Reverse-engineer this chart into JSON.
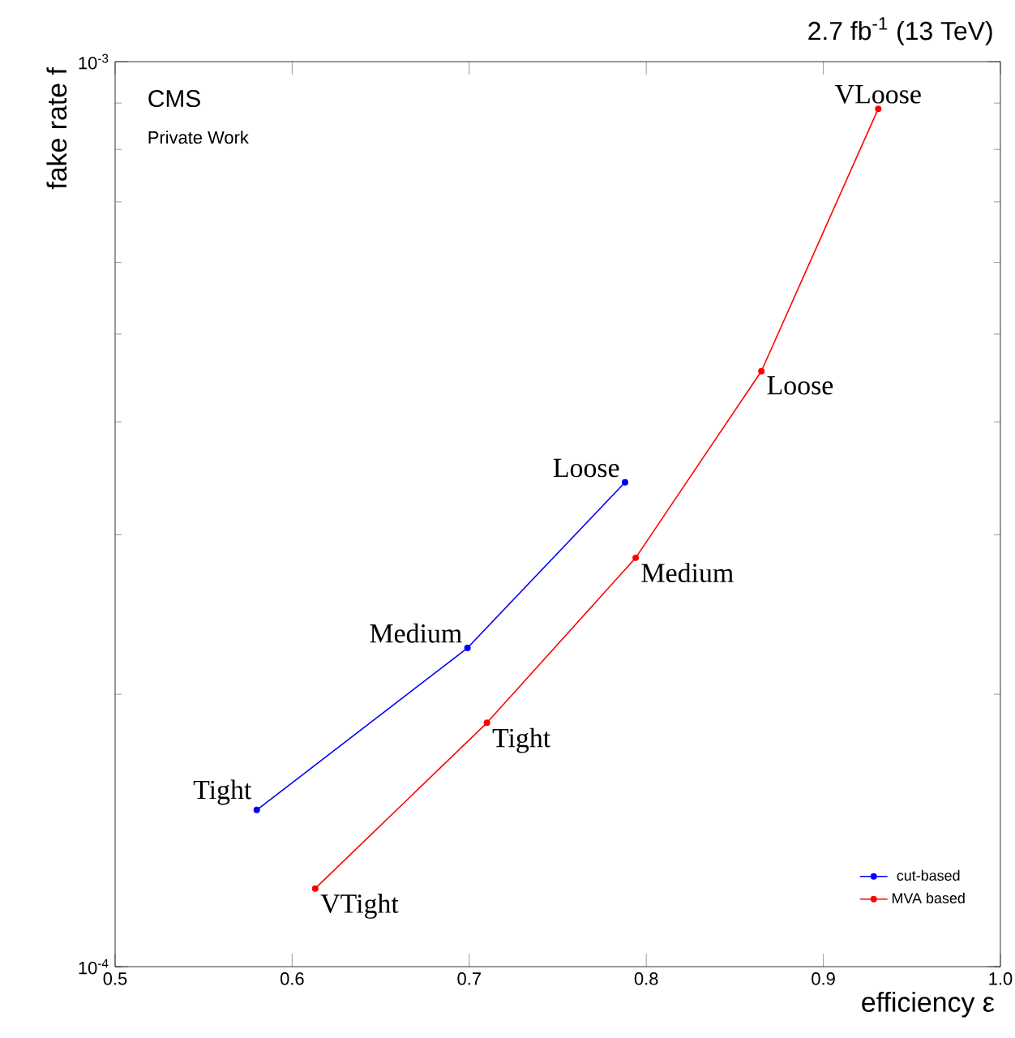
{
  "chart_data": {
    "type": "line",
    "title": "2.7 fb$^{-1}$ (13 TeV)",
    "xlabel": "efficiency ε",
    "ylabel": "fake rate f",
    "series": [
      {
        "name": "cut-based",
        "color": "#0000ff",
        "x": [
          0.58,
          0.699,
          0.788
        ],
        "values": [
          0.000149,
          0.000225,
          0.000343
        ]
      },
      {
        "name": "MVA based",
        "color": "#ff0000",
        "x": [
          0.613,
          0.71,
          0.794,
          0.865,
          0.931
        ],
        "values": [
          0.000122,
          0.000186,
          0.000283,
          0.000455,
          0.000887
        ]
      }
    ],
    "xlim": [
      0.5,
      1.0
    ],
    "ylim": [
      0.0001,
      0.001
    ],
    "xticks": [
      0.5,
      0.6,
      0.7,
      0.8,
      0.9,
      {
        "value": 1.0,
        "label": "1.0"
      }
    ],
    "yticks": [
      {
        "value": 0.0001,
        "label": "10$^{-4}$"
      },
      {
        "value": 0.001,
        "label": "10$^{-3}$"
      }
    ],
    "log": "y",
    "grid": false,
    "legend": "bottom right",
    "marker": "circle",
    "line_style": "solid",
    "annotations": [
      "CMS",
      "Private Work",
      {
        "text": "Tight",
        "x": 0.58,
        "y": 0.000149
      },
      {
        "text": "Medium",
        "x": 0.699,
        "y": 0.000225
      },
      {
        "text": "Loose",
        "x": 0.788,
        "y": 0.000343
      },
      {
        "text": "VTight",
        "x": 0.613,
        "y": 0.000122
      },
      {
        "text": "Tight",
        "x": 0.71,
        "y": 0.000186
      },
      {
        "text": "Medium",
        "x": 0.794,
        "y": 0.000283
      },
      {
        "text": "Loose",
        "x": 0.865,
        "y": 0.000455
      },
      {
        "text": "VLoose",
        "x": 0.931,
        "y": 0.000887
      }
    ]
  }
}
